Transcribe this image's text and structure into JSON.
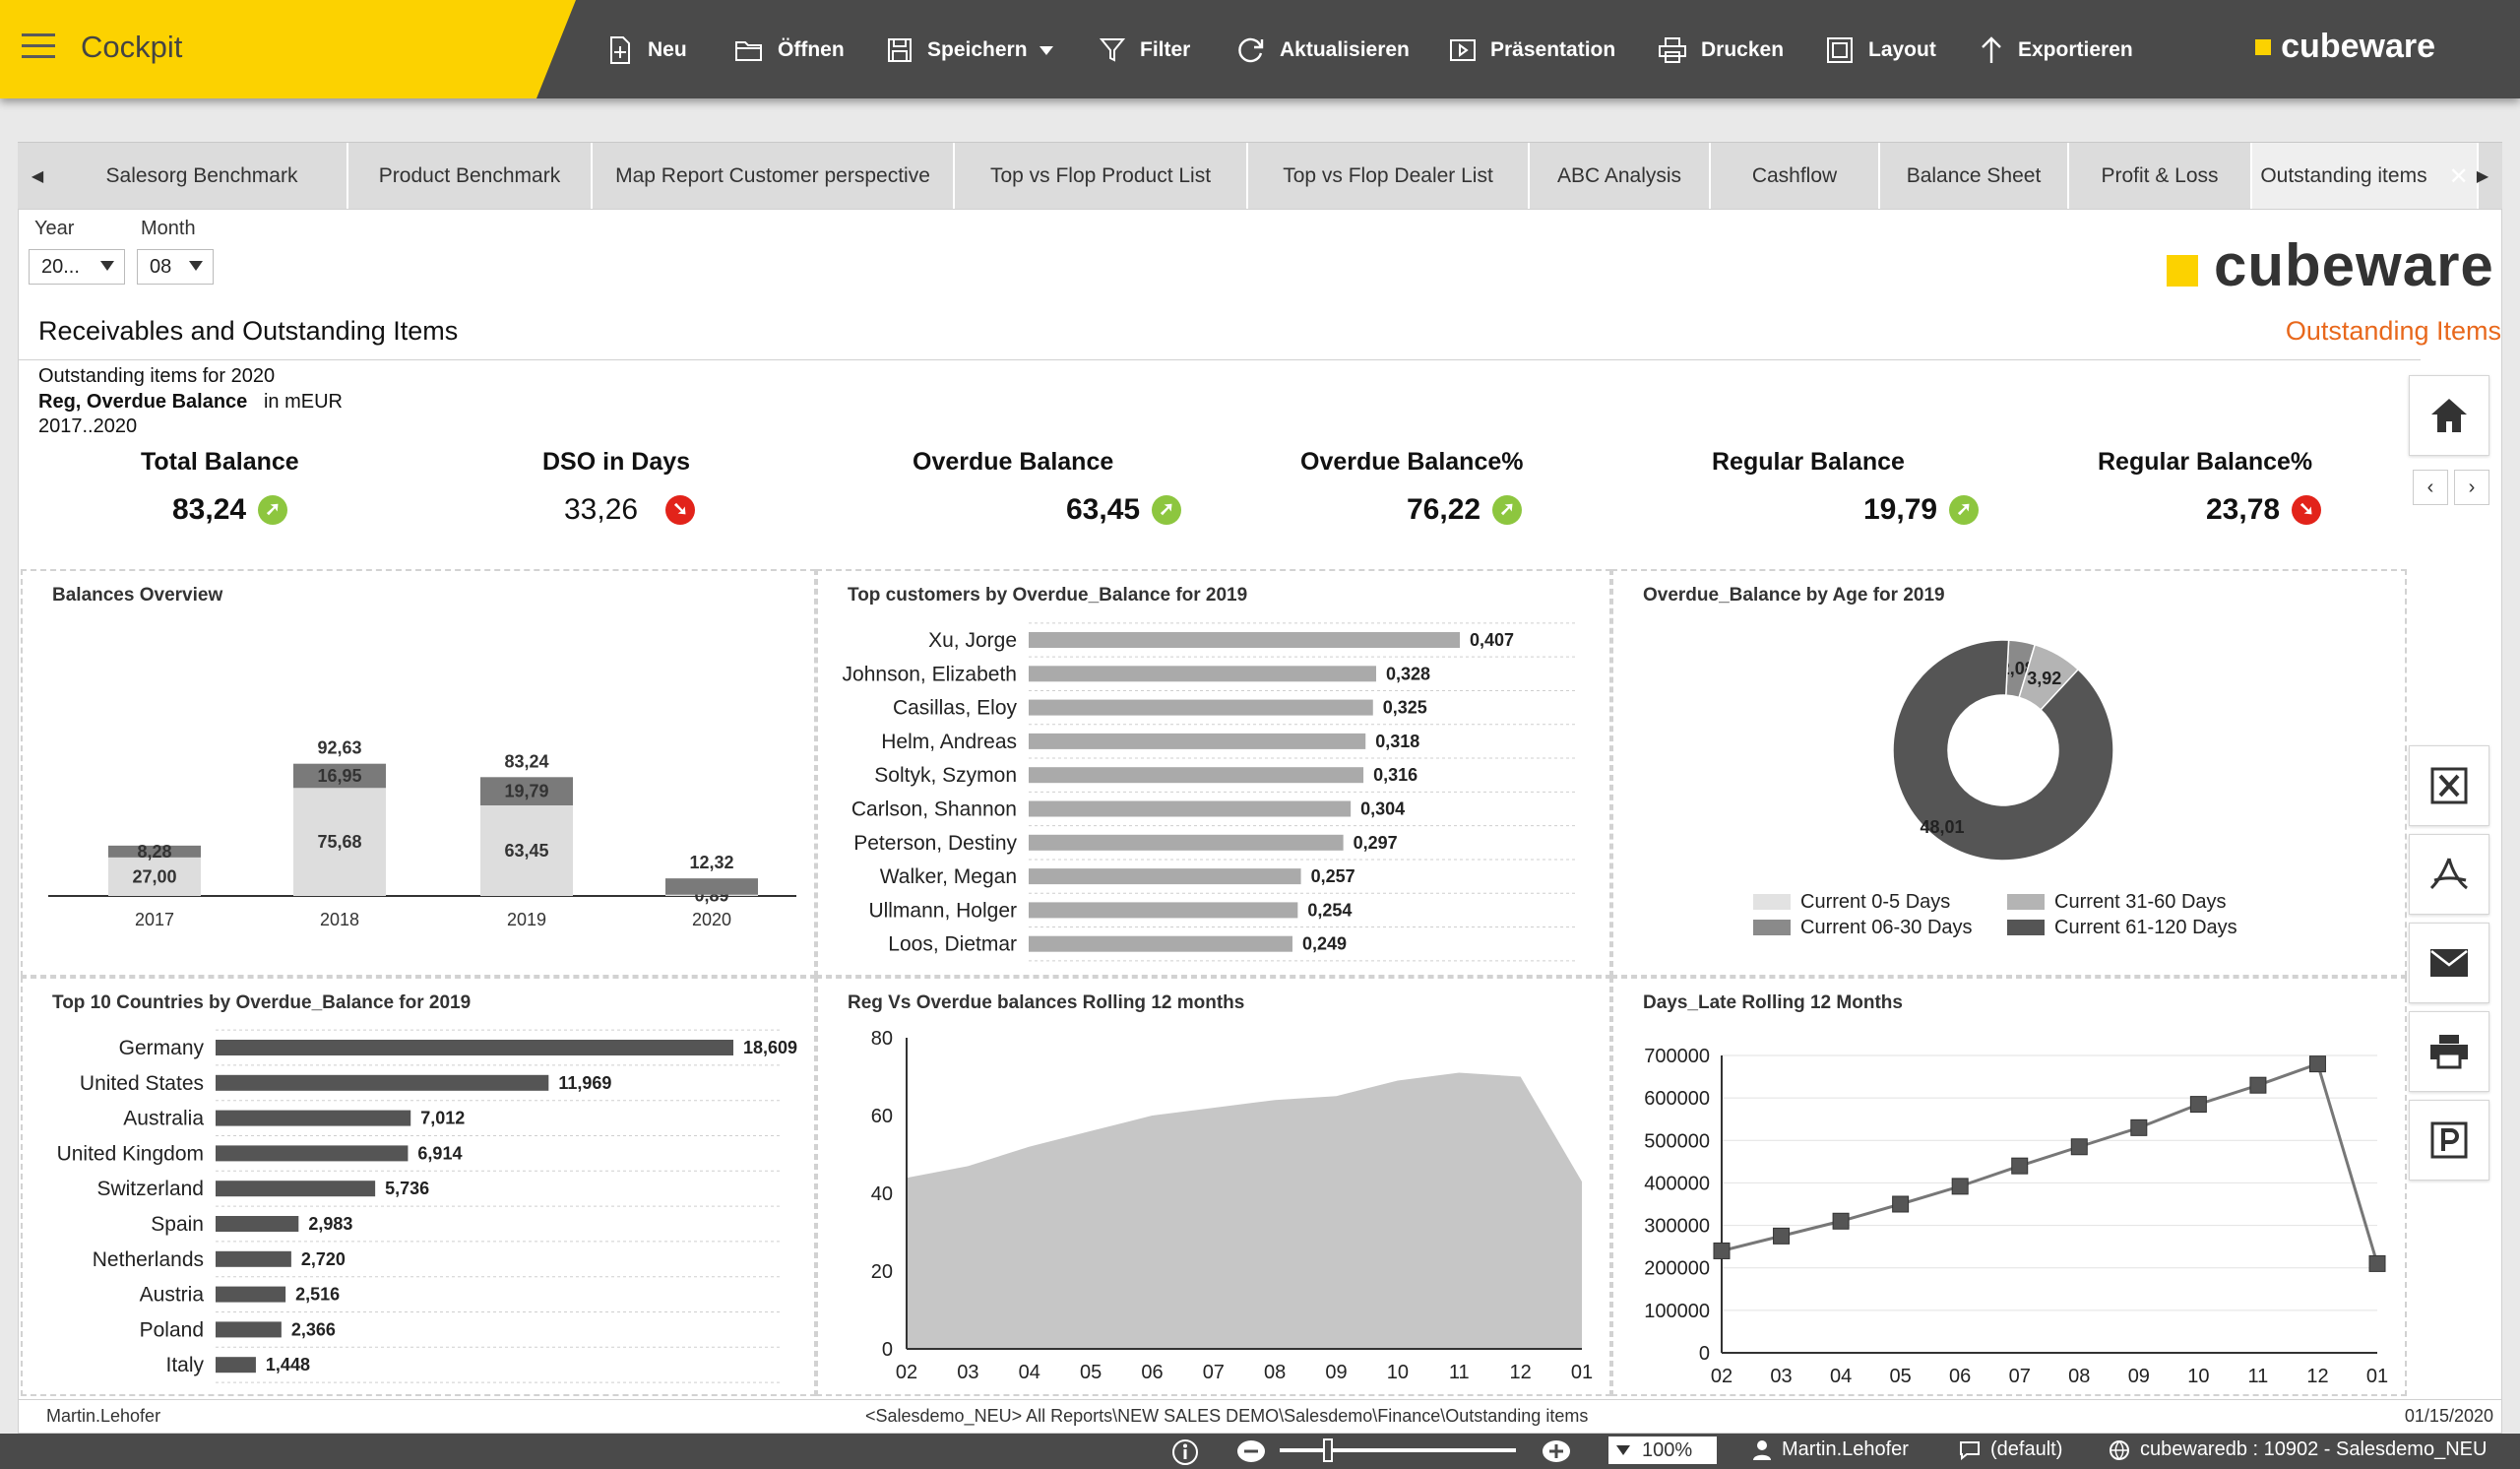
{
  "app": {
    "title": "Cockpit",
    "logo_text": "cubeware"
  },
  "toolbar": [
    {
      "label": "Neu",
      "icon": "new-icon"
    },
    {
      "label": "Öffnen",
      "icon": "folder-icon"
    },
    {
      "label": "Speichern",
      "icon": "save-icon"
    },
    {
      "label": "Filter",
      "icon": "filter-icon"
    },
    {
      "label": "Aktualisieren",
      "icon": "refresh-icon"
    },
    {
      "label": "Präsentation",
      "icon": "presentation-icon"
    },
    {
      "label": "Drucken",
      "icon": "print-icon"
    },
    {
      "label": "Layout",
      "icon": "layout-icon"
    },
    {
      "label": "Exportieren",
      "icon": "export-icon"
    }
  ],
  "tabs": [
    "Salesorg Benchmark",
    "Product Benchmark",
    "Map Report Customer perspective",
    "Top vs Flop Product List",
    "Top vs Flop Dealer List",
    "ABC Analysis",
    "Cashflow",
    "Balance Sheet",
    "Profit & Loss",
    "Outstanding items"
  ],
  "filters": {
    "year_label": "Year",
    "year_value": "20...",
    "month_label": "Month",
    "month_value": "08"
  },
  "report": {
    "logo_text": "cubeware",
    "title": "Receivables and Outstanding Items",
    "subtitle": "Outstanding Items",
    "info_line1": "Outstanding items for 2020",
    "info_line2_bold": "Reg, Overdue Balance",
    "info_line2_unit": "in mEUR",
    "info_line3": "2017..2020"
  },
  "kpis": [
    {
      "label": "Total Balance",
      "value": "83,24",
      "trend": "up",
      "bold": true
    },
    {
      "label": "DSO in Days",
      "value": "33,26",
      "trend": "down",
      "bold": false
    },
    {
      "label": "Overdue Balance",
      "value": "63,45",
      "trend": "up",
      "bold": true
    },
    {
      "label": "Overdue Balance%",
      "value": "76,22",
      "trend": "up",
      "bold": true
    },
    {
      "label": "Regular Balance",
      "value": "19,79",
      "trend": "up",
      "bold": true
    },
    {
      "label": "Regular Balance%",
      "value": "23,78",
      "trend": "down",
      "bold": true
    }
  ],
  "panels": {
    "p1": "Balances Overview",
    "p2": "Top customers by Overdue_Balance for 2019",
    "p3": "Overdue_Balance by Age for 2019",
    "p4": "Top 10 Countries by Overdue_Balance for 2019",
    "p5": "Reg Vs Overdue balances Rolling 12 months",
    "p6": "Days_Late Rolling 12 Months"
  },
  "chart_data": [
    {
      "type": "bar",
      "stacked": true,
      "categories": [
        "2017",
        "2018",
        "2019",
        "2020"
      ],
      "series": [
        {
          "values": [
            27.0,
            75.68,
            63.45,
            0.89
          ],
          "labels": [
            "27,00",
            "75,68",
            "63,45",
            "0,89"
          ],
          "color": "#dddddd"
        },
        {
          "values": [
            8.28,
            16.95,
            19.79,
            11.43
          ],
          "labels": [
            "8,28",
            "16,95",
            "19,79",
            ""
          ],
          "color": "#7a7a7a"
        }
      ],
      "totals": [
        "",
        "92,63",
        "83,24",
        "12,32"
      ]
    },
    {
      "type": "bar",
      "orientation": "horizontal",
      "categories": [
        "Xu, Jorge",
        "Johnson, Elizabeth",
        "Casillas, Eloy",
        "Helm, Andreas",
        "Soltyk, Szymon",
        "Carlson, Shannon",
        "Peterson, Destiny",
        "Walker, Megan",
        "Ullmann, Holger",
        "Loos, Dietmar"
      ],
      "values": [
        0.407,
        0.328,
        0.325,
        0.318,
        0.316,
        0.304,
        0.297,
        0.257,
        0.254,
        0.249
      ],
      "labels": [
        "0,407",
        "0,328",
        "0,325",
        "0,318",
        "0,316",
        "0,304",
        "0,297",
        "0,257",
        "0,254",
        "0,249"
      ]
    },
    {
      "type": "pie",
      "donut": true,
      "slices": [
        {
          "name": "Current 0-5 Days",
          "value": 0,
          "color": "#e2e2e2"
        },
        {
          "name": "Current 06-30 Days",
          "value": 2.08,
          "color": "#8a8a8a"
        },
        {
          "name": "Current 31-60 Days",
          "value": 3.92,
          "color": "#b4b4b4"
        },
        {
          "name": "Current 61-120 Days",
          "value": 48.01,
          "color": "#555555"
        }
      ],
      "labels": [
        "",
        "2,08",
        "3,92",
        "48,01"
      ]
    },
    {
      "type": "bar",
      "orientation": "horizontal",
      "categories": [
        "Germany",
        "United States",
        "Australia",
        "United Kingdom",
        "Switzerland",
        "Spain",
        "Netherlands",
        "Austria",
        "Poland",
        "Italy"
      ],
      "values": [
        18.609,
        11.969,
        7.012,
        6.914,
        5.736,
        2.983,
        2.72,
        2.516,
        2.366,
        1.448
      ],
      "labels": [
        "18,609",
        "11,969",
        "7,012",
        "6,914",
        "5,736",
        "2,983",
        "2,720",
        "2,516",
        "2,366",
        "1,448"
      ]
    },
    {
      "type": "area",
      "x": [
        "02",
        "03",
        "04",
        "05",
        "06",
        "07",
        "08",
        "09",
        "10",
        "11",
        "12",
        "01"
      ],
      "values": [
        44,
        47,
        52,
        56,
        60,
        62,
        64,
        65,
        69,
        71,
        70,
        43
      ],
      "ylim": [
        0,
        80
      ],
      "yticks": [
        0,
        20,
        40,
        60,
        80
      ],
      "color": "#c6c6c6"
    },
    {
      "type": "line",
      "x": [
        "02",
        "03",
        "04",
        "05",
        "06",
        "07",
        "08",
        "09",
        "10",
        "11",
        "12",
        "01"
      ],
      "values": [
        240000,
        275000,
        310000,
        350000,
        392000,
        440000,
        485000,
        530000,
        585000,
        630000,
        680000,
        210000
      ],
      "ylim": [
        0,
        700000
      ],
      "yticks": [
        0,
        100000,
        200000,
        300000,
        400000,
        500000,
        600000,
        700000
      ]
    }
  ],
  "footer": {
    "user": "Martin.Lehofer",
    "path": "<Salesdemo_NEU> All Reports\\NEW SALES DEMO\\Salesdemo\\Finance\\Outstanding items",
    "date": "01/15/2020"
  },
  "statusbar": {
    "zoom": "100%",
    "user": "Martin.Lehofer",
    "locale": "(default)",
    "server": "cubewaredb : 10902 - Salesdemo_NEU"
  }
}
